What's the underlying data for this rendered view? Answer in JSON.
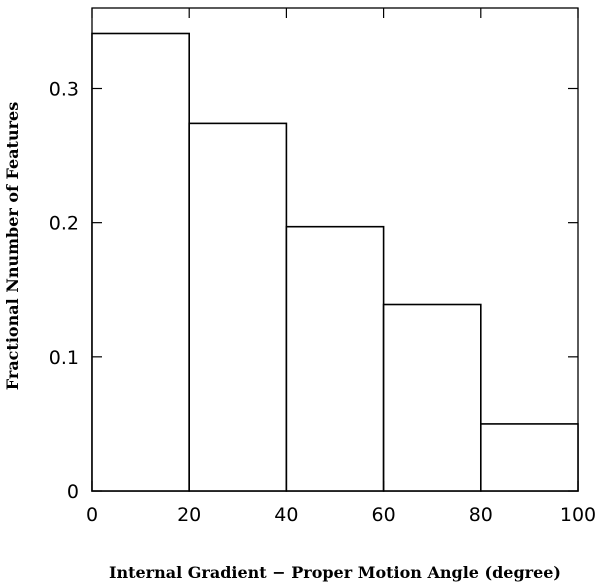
{
  "chart_data": {
    "type": "bar",
    "subtype": "histogram",
    "bins": [
      {
        "x0": 0,
        "x1": 20,
        "value": 0.341
      },
      {
        "x0": 20,
        "x1": 40,
        "value": 0.274
      },
      {
        "x0": 40,
        "x1": 60,
        "value": 0.197
      },
      {
        "x0": 60,
        "x1": 80,
        "value": 0.139
      },
      {
        "x0": 80,
        "x1": 100,
        "value": 0.05
      }
    ],
    "xlabel": "Internal Gradient − Proper Motion Angle (degree)",
    "ylabel": "Fractional Nnumber of Features",
    "xlim": [
      0,
      100
    ],
    "ylim": [
      0,
      0.36
    ],
    "xticks": [
      0,
      20,
      40,
      60,
      80,
      100
    ],
    "xtick_labels": [
      "0",
      "20",
      "40",
      "60",
      "80",
      "100"
    ],
    "yticks": [
      0,
      0.1,
      0.2,
      0.3
    ],
    "ytick_labels": [
      "0",
      "0.1",
      "0.2",
      "0.3"
    ],
    "grid": false,
    "colors": {
      "line": "#000000",
      "fill": "#ffffff"
    }
  }
}
